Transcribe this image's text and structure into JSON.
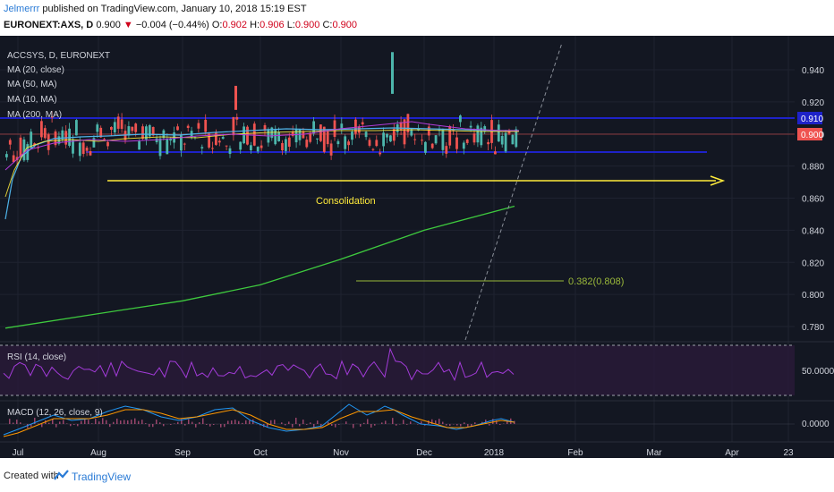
{
  "header": {
    "user": "Jelmerrr",
    "published_text": " published on TradingView.com, January 10, 2018 15:19 EST",
    "symbol": "EURONEXT:AXS, D",
    "last": "0.900",
    "arrow": "▼",
    "change": "−0.004 (−0.44%)",
    "o_label": "O:",
    "o": "0.902",
    "h_label": "H:",
    "h": "0.906",
    "l_label": "L:",
    "l": "0.900",
    "c_label": "C:",
    "c": "0.900"
  },
  "legend": {
    "title": "ACCSYS, D, EURONEXT",
    "items": [
      "MA (20, close)",
      "MA (50, MA)",
      "MA (10, MA)",
      "MA (200, MA)"
    ]
  },
  "annotations": {
    "consolidation": "Consolidation",
    "fib": "0.382(0.808)"
  },
  "price_labels": {
    "upper": "0.910",
    "last": "0.900"
  },
  "rsi": {
    "label": "RSI (14, close)",
    "tick": "50.0000"
  },
  "macd": {
    "label": "MACD (12, 26, close, 9)",
    "tick": "0.0000"
  },
  "footer": {
    "created": "Created with",
    "brand": "TradingView"
  },
  "colors": {
    "background": "#131722",
    "up": "#4db6ac",
    "down": "#ef5350",
    "support": "#1e22c8",
    "arrow": "#ffeb3b",
    "ma200": "#3ec93e",
    "rsi_bg": "#2a1a3a",
    "rsi_line": "#a33bd9"
  },
  "chart_data": {
    "type": "candlestick",
    "y_ticks": [
      "0.940",
      "0.920",
      "0.900",
      "0.880",
      "0.860",
      "0.840",
      "0.820",
      "0.800",
      "0.780"
    ],
    "y_range": [
      0.77,
      0.953
    ],
    "x_ticks": [
      "Jul",
      "Aug",
      "Sep",
      "Oct",
      "Nov",
      "Dec",
      "2018",
      "Feb",
      "Mar",
      "Apr",
      "23"
    ],
    "support_levels": [
      0.91,
      0.889
    ],
    "last_price": 0.9,
    "ma200": [
      {
        "x": "Jul",
        "y": 0.779
      },
      {
        "x": "Aug",
        "y": 0.788
      },
      {
        "x": "Sep",
        "y": 0.796
      },
      {
        "x": "Oct",
        "y": 0.806
      },
      {
        "x": "Nov",
        "y": 0.822
      },
      {
        "x": "Dec",
        "y": 0.84
      },
      {
        "x": "2018",
        "y": 0.855
      }
    ],
    "fib_level": 0.808
  }
}
